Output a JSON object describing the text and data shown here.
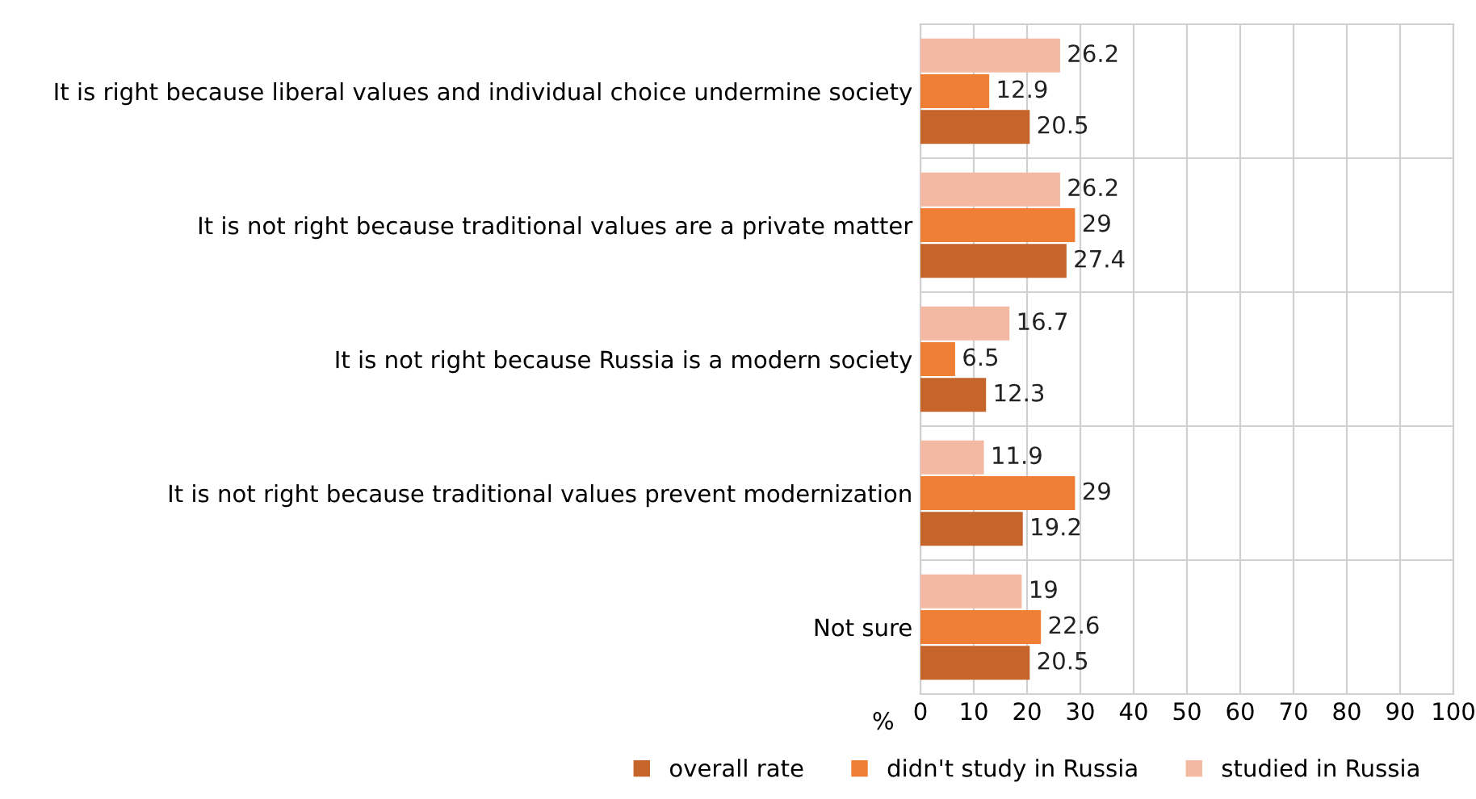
{
  "chart_data": {
    "type": "bar",
    "orientation": "horizontal",
    "categories": [
      "It is right because liberal values and individual choice undermine society",
      "It is not right because traditional values are a private matter",
      "It is not right because Russia is a modern society",
      "It is not right because traditional values prevent modernization",
      "Not sure"
    ],
    "series": [
      {
        "name": "overall rate",
        "color": "#c5652b",
        "values": [
          20.5,
          27.4,
          12.3,
          19.2,
          20.5
        ]
      },
      {
        "name": "didn't study in Russia",
        "color": "#ef7f34",
        "values": [
          12.9,
          29,
          6.5,
          29,
          22.6
        ]
      },
      {
        "name": "studied in Russia",
        "color": "#f4b9a2",
        "values": [
          26.2,
          26.2,
          16.7,
          11.9,
          19
        ]
      }
    ],
    "xlabel": "%",
    "xlim": [
      0,
      100
    ],
    "xticks": [
      0,
      10,
      20,
      30,
      40,
      50,
      60,
      70,
      80,
      90,
      100
    ],
    "grid": true,
    "legend": "bottom",
    "data_labels": true
  }
}
